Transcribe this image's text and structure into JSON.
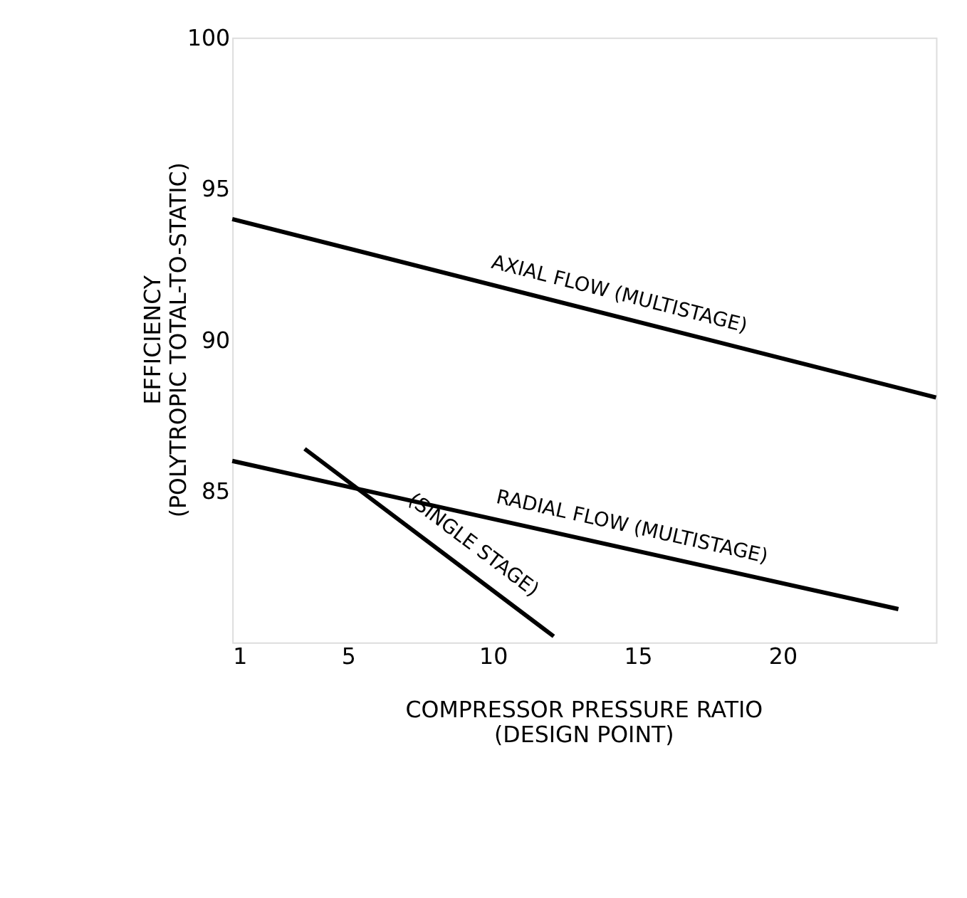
{
  "chart_data": {
    "type": "line",
    "xlabel": "COMPRESSOR PRESSURE RATIO\n(DESIGN POINT)",
    "ylabel": "EFFICIENCY\n(POLYTROPIC TOTAL-TO-STATIC)",
    "xlim": [
      1,
      25.3
    ],
    "ylim": [
      80,
      100
    ],
    "xticks": [
      1,
      5,
      10,
      15,
      20
    ],
    "yticks": [
      85,
      90,
      95,
      100
    ],
    "grid": false,
    "marker": "none",
    "line_style": "solid",
    "series": [
      {
        "color": "#000000",
        "x": [
          1,
          25.3
        ],
        "values": [
          94,
          88.1
        ]
      },
      {
        "color": "#000000",
        "x": [
          1,
          24
        ],
        "values": [
          86,
          81.1
        ]
      },
      {
        "color": "#000000",
        "x": [
          3.5,
          12.1
        ],
        "values": [
          86.4,
          80.2
        ]
      }
    ],
    "annotations": [
      "AXIAL FLOW  (MULTISTAGE)",
      "RADIAL FLOW  (MULTISTAGE)",
      "(SINGLE STAGE)"
    ]
  }
}
